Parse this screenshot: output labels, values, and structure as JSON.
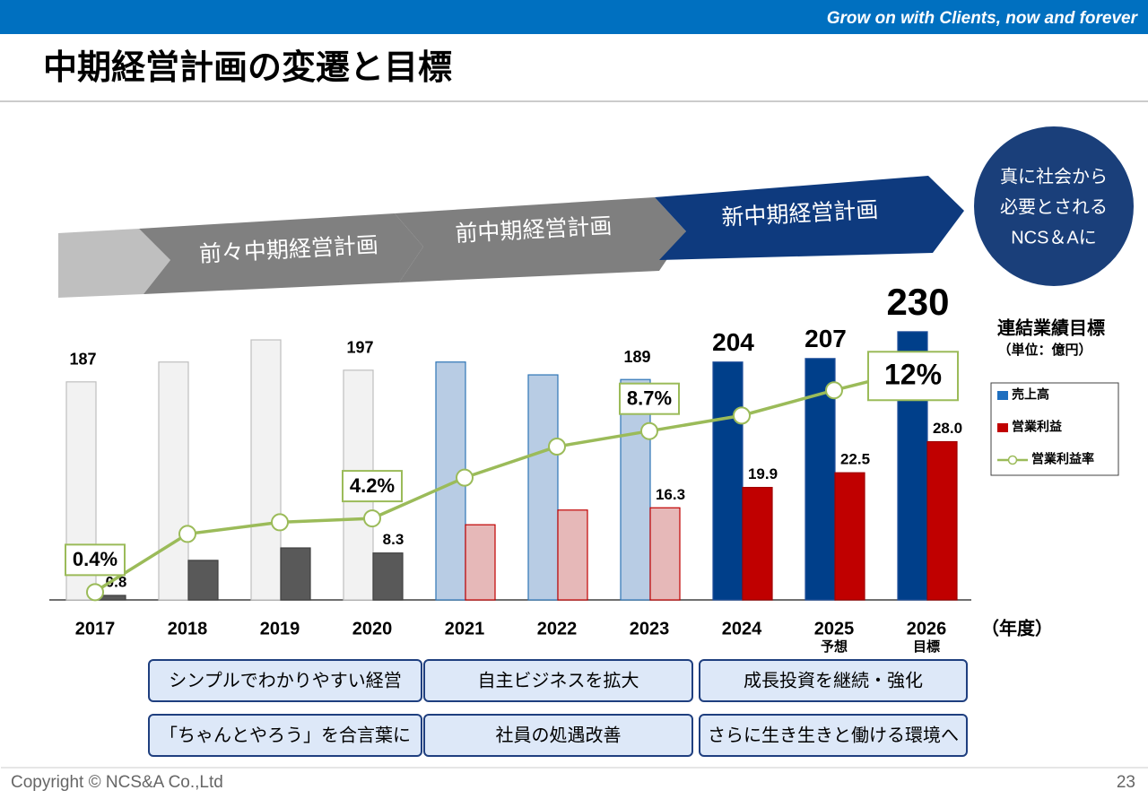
{
  "header": {
    "tagline": "Grow on with Clients, now and forever",
    "title": "中期経営計画の変遷と目標"
  },
  "phases": [
    "前々中期経営計画",
    "前中期経営計画",
    "新中期経営計画"
  ],
  "vision": [
    "真に社会から",
    "必要とされる",
    "NCS＆Aに"
  ],
  "chart_data": {
    "type": "bar",
    "categories": [
      "2017",
      "2018",
      "2019",
      "2020",
      "2021",
      "2022",
      "2023",
      "2024",
      "2025",
      "2026"
    ],
    "category_notes": [
      null,
      null,
      null,
      null,
      null,
      null,
      null,
      null,
      "予想",
      "目標"
    ],
    "x_label": "（年度）",
    "legend_title": "連結業績目標",
    "legend_subtitle": "（単位：億円）",
    "ylim": [
      0,
      253
    ],
    "y2lim": [
      0,
      52.2
    ],
    "y3lim": [
      0,
      15.2
    ],
    "series": [
      {
        "name": "売上高",
        "type": "bar",
        "color": "#1f6fbf",
        "colors": [
          "#f2f2f2",
          "#f2f2f2",
          "#f2f2f2",
          "#f2f2f2",
          "#b8cce4",
          "#b8cce4",
          "#b8cce4",
          "#003f8a",
          "#003f8a",
          "#003f8a"
        ],
        "values": [
          187,
          204,
          223,
          197,
          204,
          193,
          189,
          204,
          207,
          230
        ],
        "value_labels": [
          "187",
          null,
          null,
          "197",
          null,
          null,
          "189",
          "204",
          "207",
          "230"
        ]
      },
      {
        "name": "営業利益",
        "type": "bar",
        "axis": "y2",
        "color": "#c00000",
        "colors": [
          "#595959",
          "#595959",
          "#595959",
          "#595959",
          "#e6b8b8",
          "#e6b8b8",
          "#e6b8b8",
          "#c00000",
          "#c00000",
          "#c00000"
        ],
        "values": [
          0.8,
          7.0,
          9.2,
          8.3,
          13.3,
          15.9,
          16.3,
          19.9,
          22.5,
          28.0
        ],
        "value_labels": [
          "0.8",
          null,
          null,
          "8.3",
          null,
          null,
          "16.3",
          "19.9",
          "22.5",
          "28.0"
        ]
      },
      {
        "name": "営業利益率",
        "type": "line",
        "axis": "y3",
        "color": "#9bbb59",
        "values": [
          0.4,
          3.4,
          4.0,
          4.2,
          6.3,
          7.9,
          8.7,
          9.5,
          10.8,
          12
        ],
        "value_labels": [
          "0.4%",
          null,
          null,
          "4.2%",
          null,
          null,
          "8.7%",
          null,
          null,
          "12%"
        ]
      }
    ]
  },
  "initiatives": {
    "rows": [
      [
        "シンプルでわかりやすい経営",
        "自主ビジネスを拡大",
        "成長投資を継続・強化"
      ],
      [
        "「ちゃんとやろう」を合言葉に",
        "社員の処遇改善",
        "さらに生き生きと働ける環境へ"
      ]
    ]
  },
  "footer": {
    "copyright": "Copyright © NCS&A Co.,Ltd",
    "page": 23
  }
}
